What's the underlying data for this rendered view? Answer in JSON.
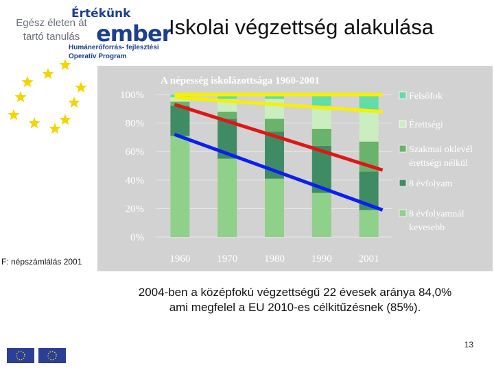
{
  "header": {
    "logo_left_line1": "Egész életen át",
    "logo_left_line2": "tartó tanulás",
    "brand_line1": "Értékünk",
    "brand_line2": "ember",
    "brand_line3": "Humánerőforrás- fejlesztési",
    "brand_line4": "Operatív Program",
    "slide_title": "Iskolai végzettség alakulása"
  },
  "colors": {
    "accent_blue": "#1d3f8f",
    "star_yellow": "#f5d400",
    "chart_bg": "#d2d2d2",
    "trend_yellow": "#f7f000",
    "trend_red": "#e01616",
    "trend_blue": "#0a1ff0"
  },
  "chart_data": {
    "type": "bar",
    "stacked": true,
    "title": "A népesség iskolázottsága 1960-2001",
    "categories": [
      "1960",
      "1970",
      "1980",
      "1990",
      "2001"
    ],
    "yticks": [
      "0%",
      "20%",
      "40%",
      "60%",
      "80%",
      "100%"
    ],
    "ylim": [
      0,
      100
    ],
    "series": [
      {
        "name": "8 évfolyamnál kevesebb",
        "color": "#8fd08a",
        "values": [
          71,
          55,
          41,
          31,
          19
        ]
      },
      {
        "name": "8 évfolyam",
        "color": "#3f8c64",
        "values": [
          21,
          28,
          33,
          33,
          27
        ]
      },
      {
        "name": "Szakmai oklevél érettségi nélkül",
        "color": "#6ab36a",
        "values": [
          3,
          5,
          9,
          12,
          21
        ]
      },
      {
        "name": "Érettségi",
        "color": "#caeec0",
        "values": [
          3,
          9,
          14,
          16,
          21
        ]
      },
      {
        "name": "Felsőfok",
        "color": "#63dca8",
        "values": [
          2,
          3,
          3,
          8,
          12
        ]
      }
    ],
    "legend": {
      "position": "right"
    },
    "trend_lines": [
      {
        "color": "#f7f000",
        "from": [
          1960,
          100
        ],
        "to": [
          2001,
          100
        ]
      },
      {
        "color": "#f7f000",
        "from": [
          1960,
          98
        ],
        "to": [
          2001,
          88
        ]
      },
      {
        "color": "#e01616",
        "from": [
          1960,
          93
        ],
        "to": [
          2001,
          47
        ]
      },
      {
        "color": "#0a1ff0",
        "from": [
          1960,
          72
        ],
        "to": [
          2001,
          19
        ]
      }
    ]
  },
  "footer": {
    "source_note": "F: népszámlálás 2001",
    "caption_line1": "2004-ben a középfokú végzettségű 22 évesek aránya 84,0%",
    "caption_line2": "ami megfelel a EU  2010-es célkitűzésnek (85%).",
    "page_number": "13"
  }
}
